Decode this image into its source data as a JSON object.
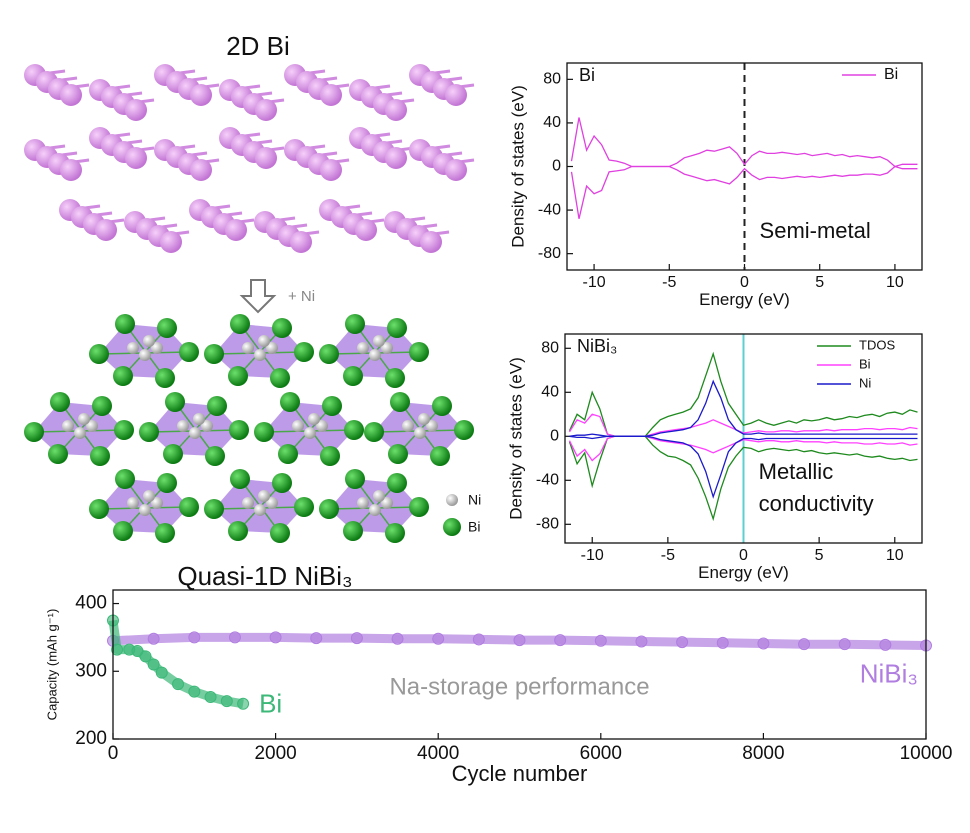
{
  "structures": {
    "top_title": "2D Bi",
    "arrow_label": "+ Ni",
    "bottom_title": "Quasi-1D NiBi₃",
    "legend": [
      "Ni",
      "Bi"
    ]
  },
  "chart_data": [
    {
      "type": "line",
      "panel_label": "Bi",
      "xlabel": "Energy (eV)",
      "ylabel": "Density of states (eV)",
      "annotations": [
        "Semi-metal"
      ],
      "legend": "upper right",
      "vline": {
        "x": 0,
        "color": "#222222",
        "dash": true
      },
      "xlim": [
        -11.8,
        11.8
      ],
      "ylim": [
        -95,
        95
      ],
      "xticks": [
        -10,
        -5,
        0,
        5,
        10
      ],
      "yticks": [
        -80,
        -40,
        0,
        40,
        80
      ],
      "x": [
        -11.5,
        -11,
        -10.5,
        -10,
        -9.5,
        -9,
        -8.5,
        -8,
        -7.5,
        -7,
        -6.5,
        -6,
        -5.5,
        -5,
        -4.5,
        -4,
        -3.5,
        -3,
        -2.5,
        -2,
        -1.5,
        -1,
        -0.5,
        0,
        0.5,
        1,
        1.5,
        2,
        2.5,
        3,
        3.5,
        4,
        4.5,
        5,
        5.5,
        6,
        6.5,
        7,
        7.5,
        8,
        8.5,
        9,
        9.5,
        10,
        10.5,
        11,
        11.5
      ],
      "series": [
        {
          "name": "Bi",
          "color": "#e040e0",
          "values": [
            5,
            45,
            15,
            28,
            20,
            6,
            5,
            3,
            0,
            0,
            0,
            0,
            0,
            0,
            3,
            8,
            10,
            12,
            15,
            14,
            16,
            18,
            12,
            2,
            10,
            14,
            12,
            12,
            13,
            12,
            11,
            12,
            10,
            11,
            12,
            10,
            11,
            9,
            10,
            9,
            8,
            9,
            6,
            0,
            2,
            2,
            2
          ],
          "values_down": [
            -5,
            -48,
            -18,
            -25,
            -22,
            -5,
            -4,
            -3,
            0,
            0,
            0,
            0,
            0,
            0,
            -3,
            -7,
            -9,
            -11,
            -13,
            -12,
            -14,
            -16,
            -10,
            -2,
            -8,
            -12,
            -10,
            -10,
            -11,
            -10,
            -9,
            -10,
            -9,
            -10,
            -9,
            -8,
            -9,
            -8,
            -8,
            -7,
            -7,
            -8,
            -6,
            0,
            -2,
            -2,
            -2
          ]
        }
      ]
    },
    {
      "type": "line",
      "panel_label": "NiBi₃",
      "xlabel": "Energy (eV)",
      "ylabel": "Density of states (eV)",
      "annotations": [
        "Metallic",
        "conductivity"
      ],
      "legend": "upper right",
      "vline": {
        "x": 0,
        "color": "#5ccfd0",
        "dash": false
      },
      "xlim": [
        -11.8,
        11.8
      ],
      "ylim": [
        -97,
        93
      ],
      "xticks": [
        -10,
        -5,
        0,
        5,
        10
      ],
      "yticks": [
        -80,
        -40,
        0,
        40,
        80
      ],
      "x": [
        -11.5,
        -11,
        -10.5,
        -10,
        -9.5,
        -9,
        -8.5,
        -8,
        -7.5,
        -7,
        -6.5,
        -6,
        -5.5,
        -5,
        -4.5,
        -4,
        -3.5,
        -3,
        -2.5,
        -2,
        -1.5,
        -1,
        -0.5,
        0,
        0.5,
        1,
        1.5,
        2,
        2.5,
        3,
        3.5,
        4,
        4.5,
        5,
        5.5,
        6,
        6.5,
        7,
        7.5,
        8,
        8.5,
        9,
        9.5,
        10,
        10.5,
        11,
        11.5
      ],
      "series": [
        {
          "name": "TDOS",
          "color": "#1e8a1e",
          "values": [
            5,
            20,
            15,
            40,
            25,
            2,
            0,
            0,
            0,
            0,
            0,
            8,
            15,
            18,
            20,
            22,
            25,
            35,
            55,
            75,
            50,
            30,
            20,
            10,
            12,
            15,
            12,
            10,
            12,
            14,
            12,
            15,
            14,
            15,
            17,
            15,
            16,
            18,
            17,
            19,
            20,
            18,
            21,
            22,
            20,
            24,
            22
          ],
          "values_down": [
            -5,
            -25,
            -15,
            -45,
            -22,
            -2,
            0,
            0,
            0,
            0,
            0,
            -8,
            -14,
            -18,
            -19,
            -22,
            -26,
            -38,
            -55,
            -75,
            -48,
            -28,
            -18,
            -10,
            -11,
            -14,
            -12,
            -11,
            -12,
            -13,
            -12,
            -14,
            -13,
            -15,
            -16,
            -15,
            -16,
            -17,
            -16,
            -18,
            -19,
            -18,
            -20,
            -21,
            -20,
            -22,
            -21
          ]
        },
        {
          "name": "Bi",
          "color": "#ff40ff",
          "values": [
            4,
            15,
            12,
            20,
            18,
            2,
            0,
            0,
            0,
            0,
            0,
            2,
            4,
            5,
            6,
            7,
            8,
            10,
            12,
            15,
            12,
            9,
            6,
            3,
            4,
            5,
            4,
            4,
            5,
            5,
            4,
            5,
            5,
            5,
            6,
            5,
            6,
            6,
            6,
            7,
            7,
            6,
            7,
            7,
            6,
            8,
            7
          ],
          "values_down": [
            -4,
            -18,
            -12,
            -22,
            -16,
            -2,
            0,
            0,
            0,
            0,
            0,
            -2,
            -4,
            -5,
            -6,
            -7,
            -8,
            -10,
            -12,
            -15,
            -12,
            -9,
            -6,
            -3,
            -4,
            -5,
            -4,
            -4,
            -5,
            -5,
            -4,
            -5,
            -5,
            -5,
            -6,
            -5,
            -6,
            -6,
            -6,
            -7,
            -7,
            -6,
            -7,
            -7,
            -6,
            -8,
            -7
          ]
        },
        {
          "name": "Ni",
          "color": "#1a1acc",
          "values": [
            0,
            1,
            1,
            2,
            1,
            0,
            0,
            0,
            0,
            0,
            0,
            1,
            3,
            4,
            5,
            6,
            8,
            15,
            30,
            50,
            35,
            15,
            6,
            2,
            2,
            3,
            2,
            2,
            2,
            2,
            2,
            2,
            2,
            2,
            2,
            2,
            2,
            2,
            2,
            2,
            2,
            2,
            2,
            2,
            2,
            2,
            2
          ],
          "values_down": [
            0,
            -1,
            -1,
            -2,
            -1,
            0,
            0,
            0,
            0,
            0,
            0,
            -1,
            -3,
            -4,
            -5,
            -6,
            -9,
            -16,
            -32,
            -55,
            -35,
            -14,
            -6,
            -2,
            -2,
            -3,
            -2,
            -2,
            -2,
            -2,
            -2,
            -2,
            -2,
            -2,
            -2,
            -2,
            -2,
            -2,
            -2,
            -2,
            -2,
            -2,
            -2,
            -2,
            -2,
            -2,
            -2
          ]
        }
      ]
    },
    {
      "type": "scatter",
      "xlabel": "Cycle number",
      "ylabel": "Capacity (mAh g⁻¹)",
      "annotations": [
        "Na-storage performance"
      ],
      "xlim": [
        0,
        10000
      ],
      "ylim": [
        200,
        420
      ],
      "xticks": [
        0,
        2000,
        4000,
        6000,
        8000,
        10000
      ],
      "yticks": [
        200,
        300,
        400
      ],
      "series": [
        {
          "name": "NiBi₃",
          "color": "#b07ee0",
          "x": [
            0,
            500,
            1000,
            1500,
            2000,
            2500,
            3000,
            3500,
            4000,
            4500,
            5000,
            5500,
            6000,
            6500,
            7000,
            7500,
            8000,
            8500,
            9000,
            9500,
            10000
          ],
          "values": [
            345,
            348,
            350,
            350,
            350,
            349,
            349,
            348,
            348,
            347,
            346,
            346,
            345,
            344,
            343,
            342,
            341,
            340,
            340,
            339,
            338
          ]
        },
        {
          "name": "Bi",
          "color": "#3cb878",
          "x": [
            0,
            50,
            200,
            300,
            400,
            500,
            600,
            800,
            1000,
            1200,
            1400,
            1600
          ],
          "values": [
            375,
            332,
            332,
            330,
            322,
            310,
            298,
            281,
            270,
            262,
            256,
            252
          ]
        }
      ]
    }
  ]
}
